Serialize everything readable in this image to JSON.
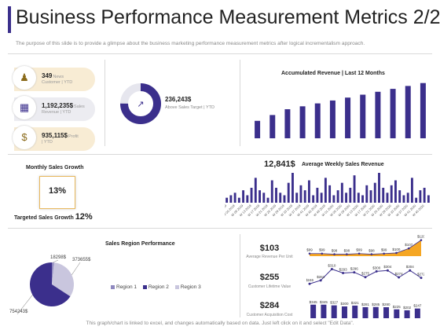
{
  "header": {
    "title": "Business Performance Measurement Metrics 2/2",
    "subtitle": "The purpose of this slide is to provide a glimpse about the business marketing performance measurement metrics after logical incrementalism approach."
  },
  "kpis": [
    {
      "value": "349",
      "label": "News",
      "sub": "Customer | YTD",
      "icon": "person-icon"
    },
    {
      "value": "1,192,235$",
      "label": "Sales",
      "sub": "Revenue | YTD",
      "icon": "building-icon"
    },
    {
      "value": "935,115$",
      "label": "Profit",
      "sub": "| YTD",
      "icon": "money-bag-icon"
    }
  ],
  "sales_target": {
    "value": "236,243$",
    "label": "Above Sales Target | YTD"
  },
  "monthly_growth": {
    "title": "Monthly Sales Growth",
    "value": "13%"
  },
  "targeted_growth": {
    "label": "Targeted Sales Growth",
    "value": "12%"
  },
  "weekly": {
    "value": "12,841$",
    "title": "Average Weekly Sales Revenue"
  },
  "metrics": [
    {
      "value": "$103",
      "label": "Average Revenue Per Unit"
    },
    {
      "value": "$255",
      "label": "Customer Lifetime Value"
    },
    {
      "value": "$284",
      "label": "Customer Acquisition Cost"
    }
  ],
  "footer": "This graph/chart is linked to excel, and changes automatically based on data. Just left click on it and select \"Edit Data\".",
  "colors": {
    "accent": "#3b2f8c",
    "gold": "#f5a623",
    "pie_light": "#c9c6de",
    "pie_mid": "#8f89bf"
  },
  "chart_data": [
    {
      "id": "accumulated",
      "type": "bar",
      "title": "Accumulated Revenue | Last 12 Months",
      "values": [
        3,
        4,
        5,
        5.5,
        6,
        6.5,
        7,
        7.5,
        8,
        8.5,
        9,
        9.5
      ],
      "ylim": [
        0,
        10
      ]
    },
    {
      "id": "weekly",
      "type": "bar",
      "title": "Average Weekly Sales Revenue",
      "categories": [
        "W 01 2019",
        "W 03 2019",
        "W 05 2019",
        "W 07 2019",
        "W 09 2019",
        "W 11 2019",
        "W 13 2019",
        "W 15 2019",
        "W 17 2019",
        "W 19 2019",
        "W 21 2019",
        "W 23 2019",
        "W 25 2019",
        "W 27 2019",
        "W 29 2019",
        "W 31 2019",
        "W 33 2019",
        "W 35 2019",
        "W 37 2019",
        "W 39 2019",
        "W 41 2019",
        "W 43 2019",
        "W 45 2019",
        "W 47 2019",
        "W 49 2019",
        "W 51 2019",
        "W 01 2020",
        "W 03 2020",
        "W 05 2020",
        "W 07 2020",
        "W 09 2020",
        "W 11 2020",
        "W 13 2020",
        "W 15 2020",
        "W 17 2020",
        "W 19 2020",
        "W 21 2020",
        "W 23 2020",
        "W 25 2020",
        "W 27 2020",
        "W 29 2020",
        "W 31 2020",
        "W 33 2020",
        "W 35 2020",
        "W 37 2020",
        "W 39 2020",
        "W 41 2020",
        "W 43 2020",
        "W 45 2020",
        "W 47 2020"
      ],
      "values": [
        2,
        3,
        4,
        2,
        5,
        3,
        6,
        10,
        5,
        4,
        2,
        9,
        6,
        4,
        3,
        8,
        12,
        4,
        7,
        5,
        9,
        3,
        6,
        4,
        10,
        7,
        3,
        5,
        8,
        4,
        6,
        11,
        4,
        3,
        7,
        5,
        8,
        12,
        6,
        4,
        7,
        9,
        5,
        3,
        4,
        10,
        2,
        5,
        6,
        3
      ],
      "ylim": [
        0,
        12
      ]
    },
    {
      "id": "region",
      "type": "pie",
      "title": "Sales Region Performance",
      "labels": [
        "Region 1",
        "Region 2",
        "Region 3"
      ],
      "values": [
        18298,
        754243,
        373655
      ],
      "data_labels": [
        "18298$",
        "754243$",
        "373655$"
      ],
      "colors": [
        "#8f89bf",
        "#3b2f8c",
        "#c9c6de"
      ]
    },
    {
      "id": "revenue_per_unit",
      "type": "area",
      "values": [
        99,
        99,
        98,
        98,
        99,
        98,
        99,
        100,
        107,
        120
      ],
      "labels": [
        "$99",
        "$99",
        "$98",
        "$98",
        "$99",
        "$98",
        "$99",
        "$100",
        "$107",
        "$120"
      ]
    },
    {
      "id": "lifetime_value",
      "type": "line",
      "values": [
        246,
        261,
        310,
        293,
        296,
        275,
        300,
        304,
        274,
        304,
        272
      ],
      "labels": [
        "$246",
        "$261",
        "$310",
        "$293",
        "$296",
        "$275",
        "$300",
        "$304",
        "$274",
        "$304",
        "$272"
      ]
    },
    {
      "id": "acquisition_cost",
      "type": "bar",
      "values": [
        345,
        345,
        327,
        300,
        321,
        281,
        285,
        280,
        225,
        202,
        247
      ],
      "labels": [
        "$345",
        "$345",
        "$327",
        "$300",
        "$321",
        "$281",
        "$285",
        "$280",
        "$225",
        "$202",
        "$247"
      ]
    }
  ]
}
